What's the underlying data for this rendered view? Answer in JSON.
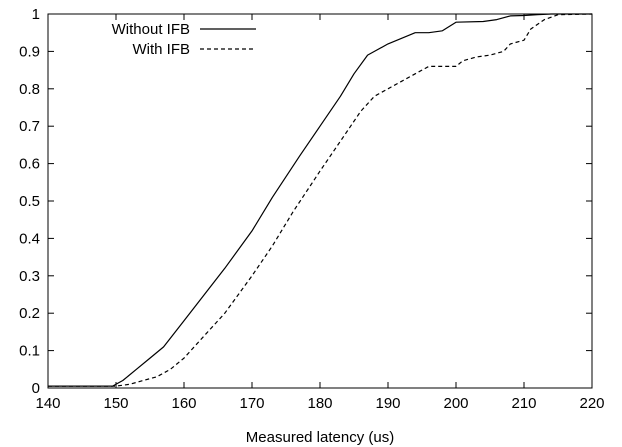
{
  "chart_data": {
    "type": "line",
    "title": "",
    "xlabel": "Measured latency (us)",
    "ylabel": "",
    "xlim": [
      140,
      220
    ],
    "ylim": [
      0,
      1
    ],
    "xticks": [
      140,
      150,
      160,
      170,
      180,
      190,
      200,
      210,
      220
    ],
    "yticks": [
      0,
      0.1,
      0.2,
      0.3,
      0.4,
      0.5,
      0.6,
      0.7,
      0.8,
      0.9,
      1
    ],
    "ytick_labels": [
      "0",
      "0.1",
      "0.2",
      "0.3",
      "0.4",
      "0.5",
      "0.6",
      "0.7",
      "0.8",
      "0.9",
      "1"
    ],
    "grid": false,
    "legend_position": "top-left",
    "series": [
      {
        "name": "Without IFB",
        "style": "solid",
        "color": "#000000",
        "x": [
          140,
          149.5,
          151,
          153,
          155,
          157,
          160,
          163,
          166,
          170,
          173,
          177,
          180,
          183,
          185,
          187,
          188,
          190,
          192,
          194,
          196,
          198,
          200,
          204,
          206,
          208,
          210,
          212,
          214,
          220
        ],
        "y": [
          0.005,
          0.005,
          0.02,
          0.05,
          0.08,
          0.11,
          0.18,
          0.25,
          0.32,
          0.42,
          0.51,
          0.62,
          0.7,
          0.78,
          0.84,
          0.89,
          0.9,
          0.92,
          0.935,
          0.95,
          0.95,
          0.955,
          0.978,
          0.98,
          0.985,
          0.995,
          0.996,
          0.998,
          1.0,
          1.0
        ]
      },
      {
        "name": "With IFB",
        "style": "dashed",
        "color": "#000000",
        "x": [
          140,
          148,
          150,
          152,
          154,
          156,
          158,
          160,
          163,
          166,
          170,
          173,
          176,
          180,
          183,
          186,
          188,
          190,
          192,
          194,
          196,
          198,
          200,
          201,
          203,
          205,
          207,
          208,
          210,
          211,
          213,
          215,
          220
        ],
        "y": [
          0.005,
          0.005,
          0.005,
          0.01,
          0.02,
          0.03,
          0.05,
          0.08,
          0.14,
          0.2,
          0.3,
          0.38,
          0.47,
          0.58,
          0.66,
          0.74,
          0.78,
          0.8,
          0.82,
          0.84,
          0.86,
          0.86,
          0.86,
          0.875,
          0.885,
          0.89,
          0.9,
          0.92,
          0.93,
          0.96,
          0.985,
          0.998,
          1.0
        ]
      }
    ]
  }
}
